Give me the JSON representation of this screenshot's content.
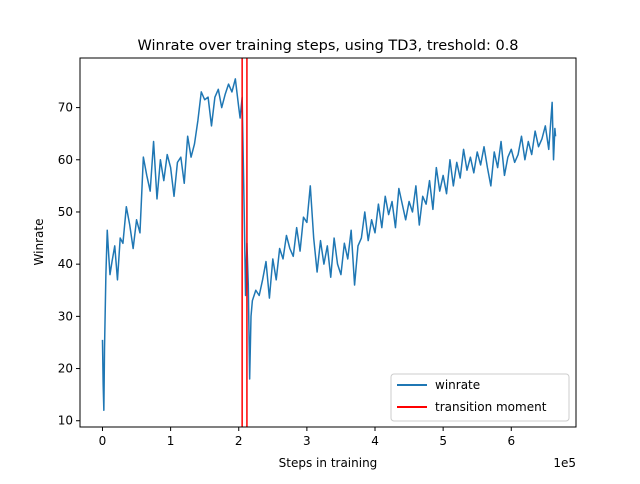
{
  "chart_data": {
    "type": "line",
    "title": "Winrate over training steps, using TD3, treshold: 0.8",
    "xlabel": "Steps in training",
    "ylabel": "Winrate",
    "x_offset_label": "1e5",
    "xlim": [
      -0.33,
      6.95
    ],
    "ylim": [
      8.8,
      79.5
    ],
    "x_ticks": [
      0,
      1,
      2,
      3,
      4,
      5,
      6
    ],
    "x_tick_labels": [
      "0",
      "1",
      "2",
      "3",
      "4",
      "5",
      "6"
    ],
    "y_ticks": [
      10,
      20,
      30,
      40,
      50,
      60,
      70
    ],
    "y_tick_labels": [
      "10",
      "20",
      "30",
      "40",
      "50",
      "60",
      "70"
    ],
    "grid": false,
    "legend_position": "lower-right",
    "colors": {
      "winrate": "#1f77b4",
      "transition": "#ff0000"
    },
    "series": [
      {
        "name": "winrate",
        "x": [
          0.0,
          0.01,
          0.02,
          0.03,
          0.05,
          0.07,
          0.09,
          0.11,
          0.14,
          0.18,
          0.22,
          0.26,
          0.3,
          0.35,
          0.4,
          0.45,
          0.5,
          0.55,
          0.6,
          0.65,
          0.7,
          0.75,
          0.8,
          0.85,
          0.9,
          0.95,
          1.0,
          1.05,
          1.1,
          1.15,
          1.2,
          1.25,
          1.3,
          1.35,
          1.4,
          1.45,
          1.5,
          1.55,
          1.6,
          1.65,
          1.7,
          1.75,
          1.8,
          1.85,
          1.9,
          1.95,
          2.0,
          2.02,
          2.05,
          2.08,
          2.1,
          2.12,
          2.14,
          2.16,
          2.18,
          2.2,
          2.25,
          2.3,
          2.35,
          2.4,
          2.45,
          2.5,
          2.55,
          2.6,
          2.65,
          2.7,
          2.75,
          2.8,
          2.85,
          2.9,
          2.95,
          3.0,
          3.05,
          3.1,
          3.15,
          3.2,
          3.25,
          3.3,
          3.35,
          3.4,
          3.45,
          3.5,
          3.55,
          3.6,
          3.65,
          3.7,
          3.75,
          3.8,
          3.85,
          3.9,
          3.95,
          4.0,
          4.05,
          4.1,
          4.15,
          4.2,
          4.25,
          4.3,
          4.35,
          4.4,
          4.45,
          4.5,
          4.55,
          4.6,
          4.65,
          4.7,
          4.75,
          4.8,
          4.85,
          4.9,
          4.95,
          5.0,
          5.05,
          5.1,
          5.15,
          5.2,
          5.25,
          5.3,
          5.35,
          5.4,
          5.45,
          5.5,
          5.55,
          5.6,
          5.65,
          5.7,
          5.75,
          5.8,
          5.85,
          5.9,
          5.95,
          6.0,
          6.05,
          6.1,
          6.15,
          6.2,
          6.25,
          6.3,
          6.35,
          6.4,
          6.45,
          6.5,
          6.55,
          6.6,
          6.62,
          6.64,
          6.65
        ],
        "y": [
          25.5,
          17.0,
          12.0,
          24.0,
          38.0,
          46.5,
          42.0,
          38.0,
          40.5,
          43.5,
          37.0,
          45.0,
          44.0,
          51.0,
          47.5,
          43.0,
          48.5,
          46.0,
          60.5,
          57.0,
          54.0,
          63.5,
          52.5,
          60.0,
          56.0,
          61.0,
          58.5,
          53.0,
          59.5,
          60.5,
          55.5,
          64.5,
          60.5,
          63.0,
          67.5,
          73.0,
          71.5,
          72.0,
          66.5,
          72.0,
          73.5,
          70.0,
          72.5,
          74.5,
          73.0,
          75.5,
          70.0,
          68.0,
          72.0,
          50.0,
          34.0,
          44.0,
          36.0,
          18.0,
          30.0,
          33.0,
          35.0,
          34.0,
          37.0,
          40.5,
          33.5,
          41.0,
          37.0,
          43.0,
          41.0,
          45.5,
          43.0,
          41.5,
          47.0,
          42.5,
          49.0,
          48.0,
          55.0,
          45.0,
          38.5,
          44.5,
          40.0,
          43.5,
          37.5,
          45.0,
          40.0,
          38.0,
          44.0,
          41.0,
          46.5,
          36.0,
          43.5,
          45.0,
          50.0,
          44.5,
          48.5,
          46.0,
          51.5,
          47.0,
          53.0,
          49.5,
          52.0,
          47.0,
          54.5,
          51.5,
          48.5,
          52.0,
          50.0,
          55.0,
          47.5,
          53.0,
          51.5,
          56.0,
          50.5,
          58.5,
          54.0,
          57.0,
          53.5,
          60.0,
          55.0,
          59.5,
          56.5,
          62.0,
          58.0,
          60.5,
          57.5,
          61.5,
          59.0,
          62.5,
          58.5,
          55.0,
          61.5,
          58.5,
          63.5,
          57.0,
          60.5,
          62.0,
          59.5,
          61.0,
          64.5,
          60.0,
          63.5,
          61.0,
          65.5,
          62.5,
          64.0,
          66.5,
          62.0,
          71.0,
          60.0,
          66.0,
          64.5
        ]
      }
    ],
    "vlines": {
      "name": "transition moment",
      "x": [
        2.05,
        2.12
      ],
      "ylim": [
        8.8,
        79.5
      ]
    }
  }
}
